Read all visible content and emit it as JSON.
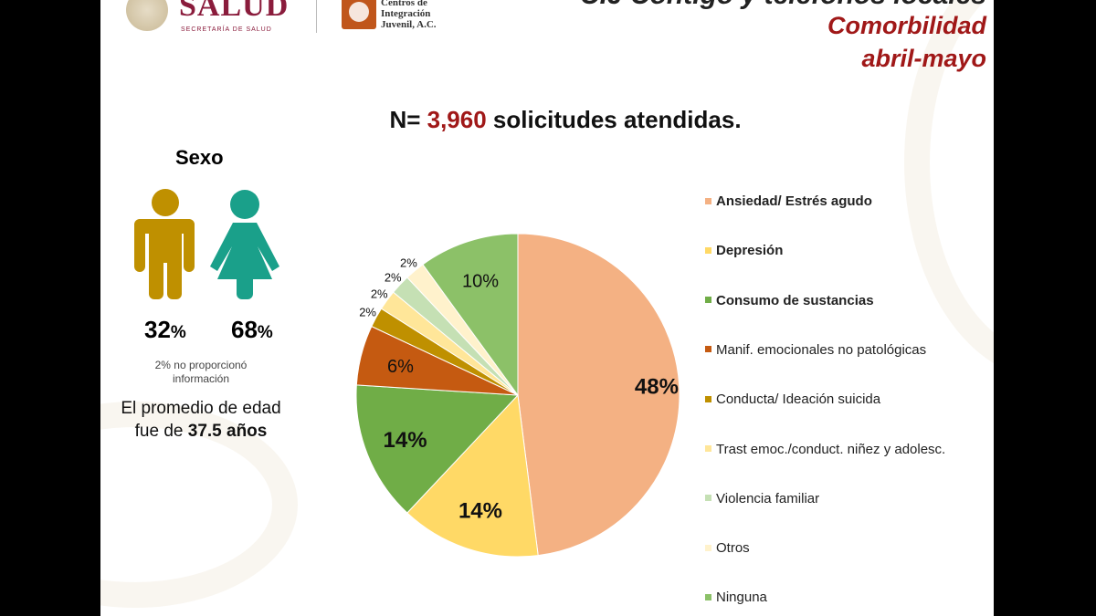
{
  "header": {
    "salud_logo": "SALUD",
    "salud_sub": "SECRETARÍA DE SALUD",
    "cij_logo": "Centros de Integración Juvenil, A.C.",
    "title": "CIJ Contigo y teléfonos locales",
    "subtitle1": "Comorbilidad",
    "subtitle2": "abril-mayo"
  },
  "summary": {
    "prefix": "N= ",
    "n": "3,960",
    "suffix": " solicitudes atendidas."
  },
  "sexo": {
    "title": "Sexo",
    "male_pct": "32",
    "female_pct": "68",
    "pct_sign": "%",
    "male_color": "#BF9000",
    "female_color": "#1AA08A",
    "note": "2% no proporcionó información",
    "age_line1": "El promedio de edad",
    "age_line2_prefix": "fue de ",
    "age_value": "37.5 años"
  },
  "chart_data": {
    "type": "pie",
    "start": "12 o'clock, clockwise",
    "legend_position": "right",
    "slices": [
      {
        "label": "Ansiedad/ Estrés agudo",
        "value": 48,
        "display": "48%",
        "color": "#F4B183",
        "bold": true
      },
      {
        "label": "Depresión",
        "value": 14,
        "display": "14%",
        "color": "#FFD966",
        "bold": true
      },
      {
        "label": "Consumo de sustancias",
        "value": 14,
        "display": "14%",
        "color": "#70AD47",
        "bold": true
      },
      {
        "label": "Manif. emocionales no patológicas",
        "value": 6,
        "display": "6%",
        "color": "#C55A11",
        "bold": false
      },
      {
        "label": "Conducta/ Ideación suicida",
        "value": 2,
        "display": "2%",
        "color": "#BF9000",
        "bold": false
      },
      {
        "label": "Trast emoc./conduct. niñez y adolesc.",
        "value": 2,
        "display": "2%",
        "color": "#FFE699",
        "bold": false
      },
      {
        "label": "Violencia familiar",
        "value": 2,
        "display": "2%",
        "color": "#C5E0B4",
        "bold": false
      },
      {
        "label": "Otros",
        "value": 2,
        "display": "2%",
        "color": "#FFF2CC",
        "bold": false
      },
      {
        "label": "Ninguna",
        "value": 10,
        "display": "10%",
        "color": "#8CC168",
        "bold": false
      }
    ]
  }
}
